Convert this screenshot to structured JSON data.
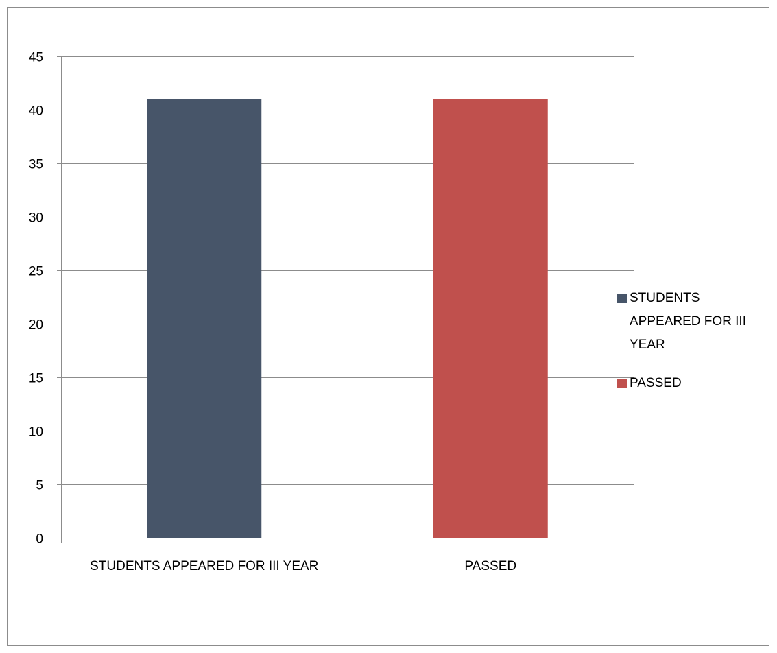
{
  "chart_data": {
    "type": "bar",
    "title": "",
    "xlabel": "",
    "ylabel": "",
    "categories": [
      "STUDENTS APPEARED FOR III YEAR",
      "PASSED"
    ],
    "values": [
      41,
      41
    ],
    "colors": [
      "#475569",
      "#c0504d"
    ],
    "ylim": [
      0,
      45
    ],
    "yticks": [
      "0",
      "5",
      "10",
      "15",
      "20",
      "25",
      "30",
      "35",
      "40",
      "45"
    ],
    "grid": true,
    "legend": {
      "position": "right",
      "entries": [
        {
          "label_lines": [
            "STUDENTS",
            "APPEARED FOR III",
            "YEAR"
          ],
          "color": "#475569"
        },
        {
          "label_lines": [
            "PASSED"
          ],
          "color": "#c0504d"
        }
      ]
    }
  }
}
